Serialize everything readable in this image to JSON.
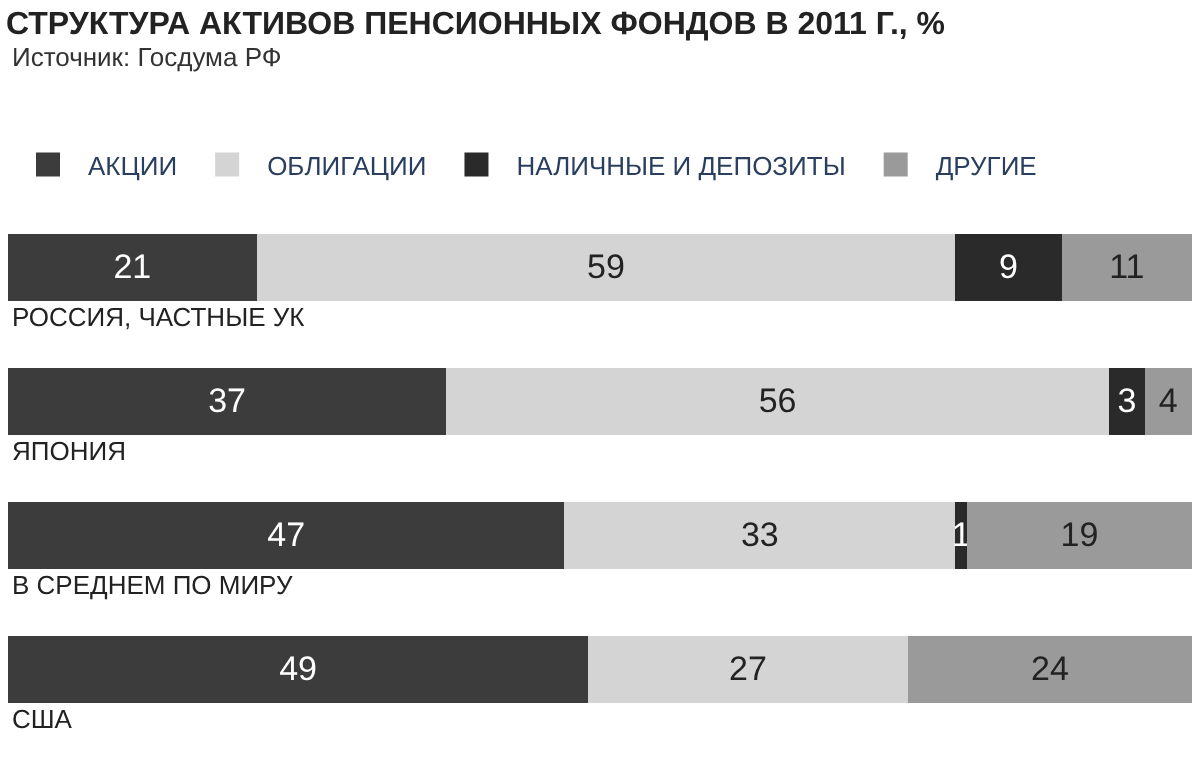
{
  "chart_data": {
    "type": "bar",
    "orientation": "horizontal",
    "stacked": true,
    "title": "СТРУКТУРА АКТИВОВ ПЕНСИОННЫХ ФОНДОВ В 2011 Г., %",
    "subtitle": "Источник: Госдума РФ",
    "categories": [
      "РОССИЯ, ЧАСТНЫЕ УК",
      "ЯПОНИЯ",
      "В СРЕДНЕМ ПО МИРУ",
      "США"
    ],
    "series": [
      {
        "name": "АКЦИИ",
        "color": "#3c3c3c",
        "values": [
          21,
          37,
          47,
          49
        ]
      },
      {
        "name": "ОБЛИГАЦИИ",
        "color": "#d4d4d4",
        "values": [
          59,
          56,
          33,
          27
        ]
      },
      {
        "name": "НАЛИЧНЫЕ И ДЕПОЗИТЫ",
        "color": "#2a2a2a",
        "values": [
          9,
          3,
          1,
          null
        ]
      },
      {
        "name": "ДРУГИЕ",
        "color": "#9a9a9a",
        "values": [
          11,
          4,
          19,
          24
        ]
      }
    ],
    "xlim": [
      0,
      100
    ],
    "tick_labels": false,
    "data_labels": true,
    "legend": "top"
  }
}
